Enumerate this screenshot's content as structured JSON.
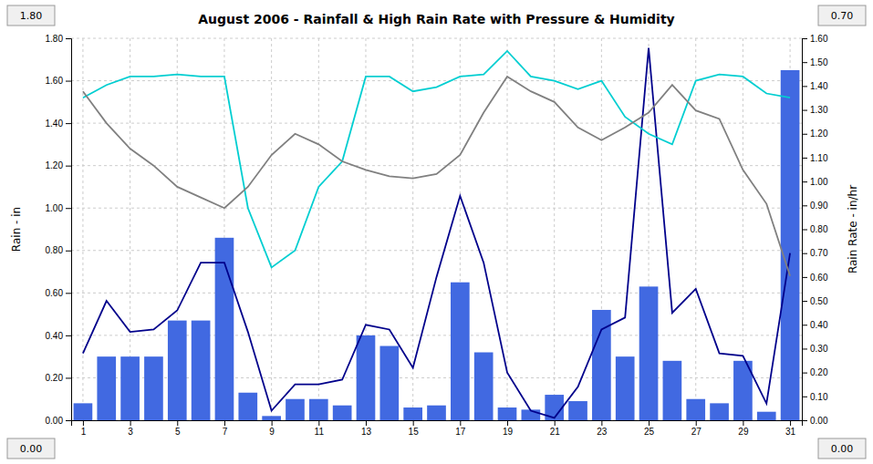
{
  "chart_data": {
    "type": "bar",
    "title": "August 2006 - Rainfall & High Rain Rate with Pressure & Humidity",
    "ylabel": "Rain - in",
    "y2label": "Rain Rate - in/hr",
    "x": [
      1,
      2,
      3,
      4,
      5,
      6,
      7,
      8,
      9,
      10,
      11,
      12,
      13,
      14,
      15,
      16,
      17,
      18,
      19,
      20,
      21,
      22,
      23,
      24,
      25,
      26,
      27,
      28,
      29,
      30,
      31
    ],
    "xlim": [
      0.5,
      31.5
    ],
    "xticks": [
      1,
      3,
      5,
      7,
      9,
      11,
      13,
      15,
      17,
      19,
      21,
      23,
      25,
      27,
      29,
      31
    ],
    "ylim": [
      0.0,
      1.8
    ],
    "yticks": [
      {
        "value": 0.0,
        "label": "0.00"
      },
      {
        "value": 0.2,
        "label": "0.20"
      },
      {
        "value": 0.4,
        "label": "0.40"
      },
      {
        "value": 0.6,
        "label": "0.60"
      },
      {
        "value": 0.8,
        "label": "0.80"
      },
      {
        "value": 1.0,
        "label": "1.00"
      },
      {
        "value": 1.2,
        "label": "1.20"
      },
      {
        "value": 1.4,
        "label": "1.40"
      },
      {
        "value": 1.6,
        "label": "1.60"
      },
      {
        "value": 1.8,
        "label": "1.80"
      }
    ],
    "y2lim": [
      0.0,
      1.6
    ],
    "y2ticks": [
      {
        "value": 0.0,
        "label": "0.00"
      },
      {
        "value": 0.1,
        "label": "0.10"
      },
      {
        "value": 0.2,
        "label": "0.20"
      },
      {
        "value": 0.3,
        "label": "0.30"
      },
      {
        "value": 0.4,
        "label": "0.40"
      },
      {
        "value": 0.5,
        "label": "0.50"
      },
      {
        "value": 0.6,
        "label": "0.60"
      },
      {
        "value": 0.7,
        "label": "0.70"
      },
      {
        "value": 0.8,
        "label": "0.80"
      },
      {
        "value": 0.9,
        "label": "0.90"
      },
      {
        "value": 1.0,
        "label": "1.00"
      },
      {
        "value": 1.1,
        "label": "1.10"
      },
      {
        "value": 1.2,
        "label": "1.20"
      },
      {
        "value": 1.3,
        "label": "1.30"
      },
      {
        "value": 1.4,
        "label": "1.40"
      },
      {
        "value": 1.5,
        "label": "1.50"
      },
      {
        "value": 1.6,
        "label": "1.60"
      }
    ],
    "grid": true,
    "annotations": [
      "1.80",
      "0.00",
      "0.70",
      "0.00"
    ],
    "series": [
      {
        "type": "bar",
        "color": "#4169e1",
        "values": [
          0.08,
          0.3,
          0.3,
          0.3,
          0.47,
          0.47,
          0.86,
          0.13,
          0.02,
          0.1,
          0.1,
          0.07,
          0.4,
          0.35,
          0.06,
          0.07,
          0.65,
          0.32,
          0.06,
          0.05,
          0.12,
          0.09,
          0.52,
          0.3,
          0.63,
          0.28,
          0.1,
          0.08,
          0.28,
          0.04,
          1.65
        ]
      },
      {
        "type": "line",
        "axis": "y2",
        "color": "#00008b",
        "values": [
          0.28,
          0.5,
          0.37,
          0.38,
          0.46,
          0.66,
          0.66,
          0.37,
          0.04,
          0.15,
          0.15,
          0.17,
          0.4,
          0.38,
          0.22,
          0.6,
          0.94,
          0.66,
          0.2,
          0.04,
          0.01,
          0.14,
          0.38,
          0.43,
          1.56,
          0.45,
          0.55,
          0.28,
          0.27,
          0.07,
          0.7
        ]
      },
      {
        "type": "line",
        "color": "#00ced1",
        "values": [
          1.52,
          1.58,
          1.62,
          1.62,
          1.63,
          1.62,
          1.62,
          1.0,
          0.72,
          0.8,
          1.1,
          1.22,
          1.62,
          1.62,
          1.55,
          1.57,
          1.62,
          1.63,
          1.74,
          1.62,
          1.6,
          1.56,
          1.6,
          1.43,
          1.35,
          1.3,
          1.6,
          1.63,
          1.62,
          1.54,
          1.52
        ]
      },
      {
        "type": "line",
        "color": "#808080",
        "values": [
          1.55,
          1.4,
          1.28,
          1.2,
          1.1,
          1.05,
          1.0,
          1.1,
          1.25,
          1.35,
          1.3,
          1.22,
          1.18,
          1.15,
          1.14,
          1.16,
          1.25,
          1.45,
          1.62,
          1.55,
          1.5,
          1.38,
          1.32,
          1.38,
          1.45,
          1.58,
          1.46,
          1.42,
          1.18,
          1.02,
          0.68
        ]
      }
    ]
  }
}
